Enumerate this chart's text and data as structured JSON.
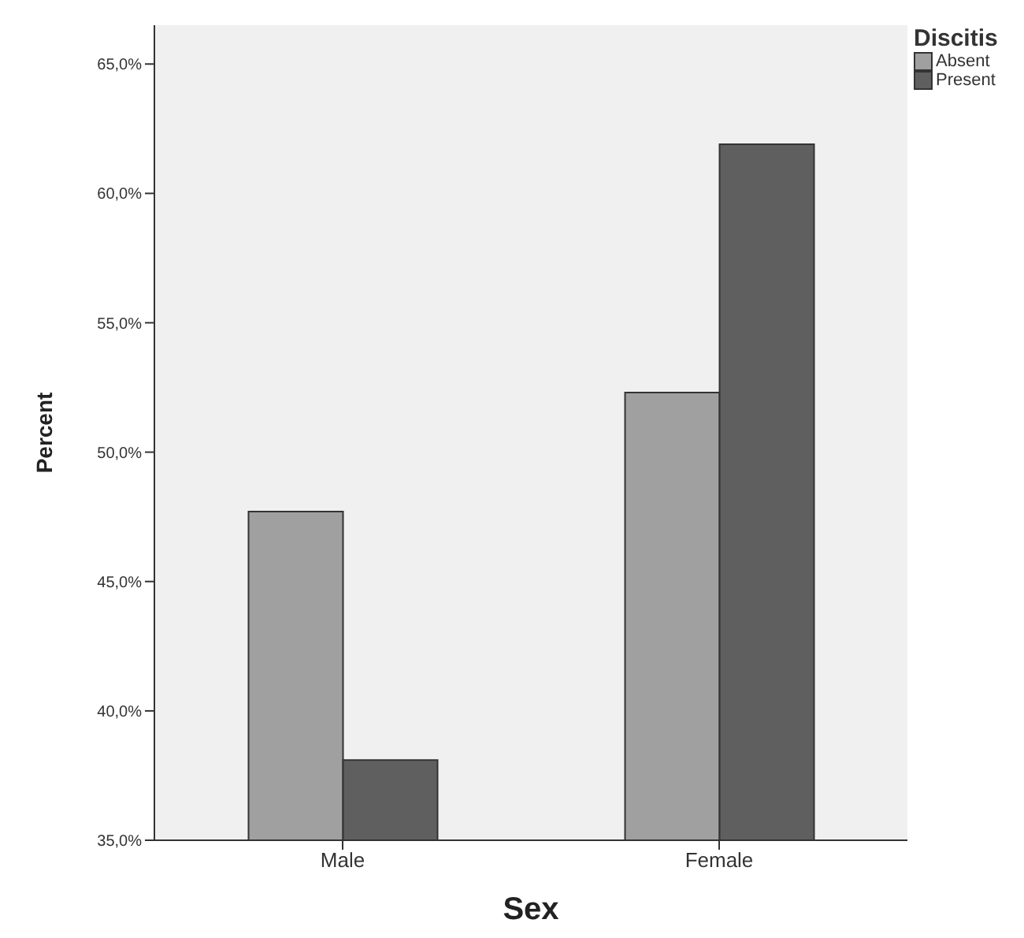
{
  "chart_data": {
    "type": "bar",
    "xlabel": "Sex",
    "ylabel": "Percent",
    "legend_title": "Discitis",
    "categories": [
      "Male",
      "Female"
    ],
    "series": [
      {
        "name": "Absent",
        "color": "#a0a0a0",
        "values": [
          47.7,
          52.3
        ]
      },
      {
        "name": "Present",
        "color": "#5f5f5f",
        "values": [
          38.1,
          61.9
        ]
      }
    ],
    "ylim": [
      35,
      66.5
    ],
    "yticks": [
      {
        "value": 35,
        "label": "35,0%"
      },
      {
        "value": 40,
        "label": "40,0%"
      },
      {
        "value": 45,
        "label": "45,0%"
      },
      {
        "value": 50,
        "label": "50,0%"
      },
      {
        "value": 55,
        "label": "55,0%"
      },
      {
        "value": 60,
        "label": "60,0%"
      },
      {
        "value": 65,
        "label": "65,0%"
      }
    ],
    "grid": false,
    "legend": "top right"
  }
}
